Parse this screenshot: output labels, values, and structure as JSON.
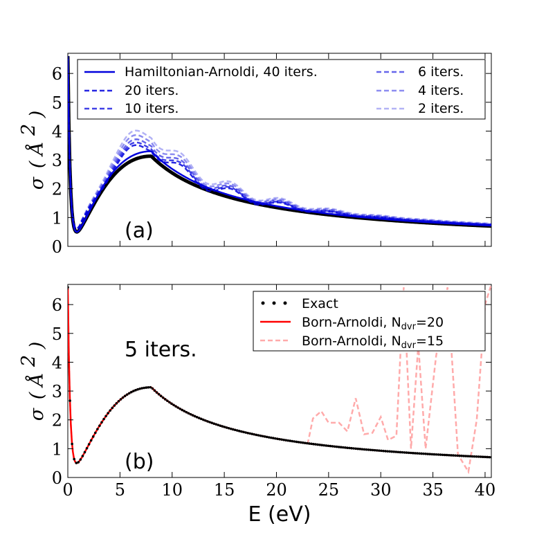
{
  "chart_data": [
    {
      "type": "line",
      "panel_label": "(a)",
      "xlim": [
        0,
        40.6
      ],
      "ylim": [
        0,
        6.7
      ],
      "xticks": [
        "0",
        "5",
        "10",
        "15",
        "20",
        "25",
        "30",
        "35",
        "40"
      ],
      "xtick_values": [
        0,
        5,
        10,
        15,
        20,
        25,
        30,
        35,
        40
      ],
      "yticks": [
        "0",
        "1",
        "2",
        "3",
        "4",
        "5",
        "6"
      ],
      "ytick_values": [
        0,
        1,
        2,
        3,
        4,
        5,
        6
      ],
      "ylabel": {
        "sym": "σ",
        "open": "(",
        "unit": "Å",
        "sup": "2",
        "close": ")"
      },
      "reference": {
        "name": "Exact",
        "color": "#000000",
        "peak": 3.13
      },
      "series": [
        {
          "name": "Hamiltonian-Arnoldi, 40 iters.",
          "color": "#0000dd",
          "opacity": 1.0,
          "dash": "solid",
          "peak": 3.32
        },
        {
          "name": "20 iters.",
          "color": "#0000dd",
          "opacity": 0.85,
          "dash": "dashed",
          "peak": 3.5
        },
        {
          "name": "10 iters.",
          "color": "#0000dd",
          "opacity": 0.75,
          "dash": "dashed",
          "peak": 3.6
        },
        {
          "name": "6 iters.",
          "color": "#0000dd",
          "opacity": 0.6,
          "dash": "dashed",
          "peak": 3.72
        },
        {
          "name": "4 iters.",
          "color": "#0000dd",
          "opacity": 0.45,
          "dash": "dashed",
          "peak": 3.88
        },
        {
          "name": "2 iters.",
          "color": "#0000dd",
          "opacity": 0.3,
          "dash": "dashed",
          "peak": 4.05
        }
      ]
    },
    {
      "type": "line",
      "panel_label": "(b)",
      "annotation": "5 iters.",
      "xlabel": "E (eV)",
      "xlim": [
        0,
        40.6
      ],
      "ylim": [
        0,
        6.7
      ],
      "xticks": [
        "0",
        "5",
        "10",
        "15",
        "20",
        "25",
        "30",
        "35",
        "40"
      ],
      "xtick_values": [
        0,
        5,
        10,
        15,
        20,
        25,
        30,
        35,
        40
      ],
      "yticks": [
        "0",
        "1",
        "2",
        "3",
        "4",
        "5",
        "6"
      ],
      "ytick_values": [
        0,
        1,
        2,
        3,
        4,
        5,
        6
      ],
      "ylabel": {
        "sym": "σ",
        "open": "(",
        "unit": "Å",
        "sup": "2",
        "close": ")"
      },
      "series": [
        {
          "name": "Exact",
          "color": "#000000",
          "style": "dots"
        },
        {
          "name": "Born-Arnoldi, N",
          "sub": "dvr",
          "eq": "=20",
          "color": "#ff0000",
          "style": "solid"
        },
        {
          "name": "Born-Arnoldi, N",
          "sub": "dvr",
          "eq": "=15",
          "color": "#ffaaaa",
          "style": "dashed"
        }
      ],
      "oscillation_region": [
        23,
        40.6
      ],
      "oscillation_points": [
        [
          23.5,
          2.05
        ],
        [
          24.3,
          2.3
        ],
        [
          25.0,
          1.9
        ],
        [
          26.0,
          1.9
        ],
        [
          26.8,
          1.6
        ],
        [
          27.6,
          2.75
        ],
        [
          28.4,
          1.5
        ],
        [
          29.2,
          1.55
        ],
        [
          30.0,
          2.1
        ],
        [
          30.7,
          1.3
        ],
        [
          31.5,
          1.45
        ],
        [
          32.2,
          6.6
        ],
        [
          32.9,
          1.0
        ],
        [
          33.6,
          4.6
        ],
        [
          34.3,
          1.0
        ],
        [
          35.3,
          4.2
        ],
        [
          36.4,
          6.6
        ],
        [
          37.4,
          0.8
        ],
        [
          38.4,
          0.2
        ],
        [
          39.2,
          2.0
        ],
        [
          40.0,
          6.0
        ],
        [
          40.6,
          6.7
        ]
      ]
    }
  ]
}
